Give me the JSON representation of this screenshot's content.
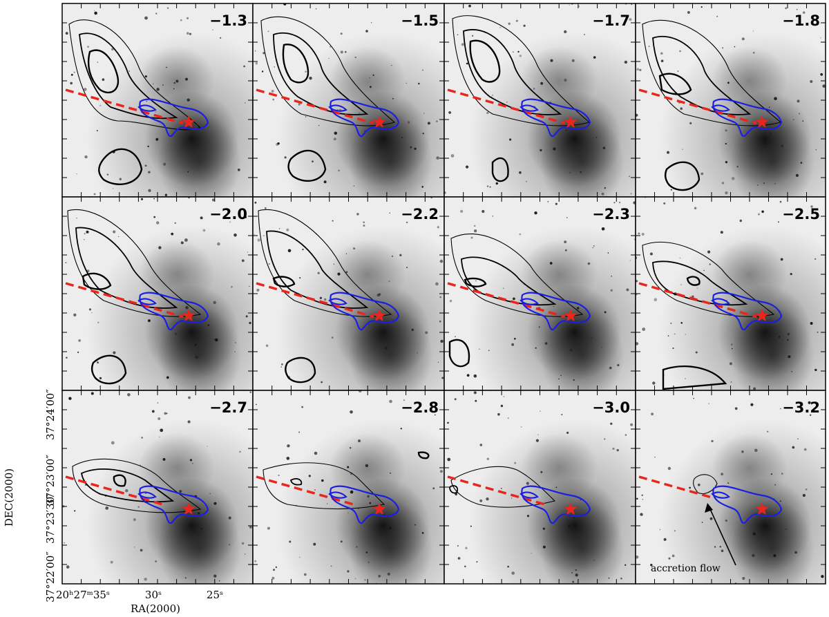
{
  "panels": [
    {
      "velocity": "−1.3"
    },
    {
      "velocity": "−1.5"
    },
    {
      "velocity": "−1.7"
    },
    {
      "velocity": "−1.8"
    },
    {
      "velocity": "−2.0"
    },
    {
      "velocity": "−2.2"
    },
    {
      "velocity": "−2.3"
    },
    {
      "velocity": "−2.5"
    },
    {
      "velocity": "−2.7"
    },
    {
      "velocity": "−2.8"
    },
    {
      "velocity": "−3.0"
    },
    {
      "velocity": "−3.2"
    }
  ],
  "axes": {
    "xlabel": "RA(2000)",
    "ylabel": "DEC(2000)",
    "xticks": [
      "20ʰ27ᵐ35ˢ",
      "30ˢ",
      "25ˢ"
    ],
    "yticks": [
      "37°24′00″",
      "37°23′00″",
      "37°23′30″",
      "37°22′00″"
    ]
  },
  "annotation": {
    "text": "accretion flow"
  },
  "colors": {
    "outflow_line": "#e8261e",
    "region_contour": "#1b1fe0",
    "star": "#e8261e",
    "contours": "#000000"
  }
}
